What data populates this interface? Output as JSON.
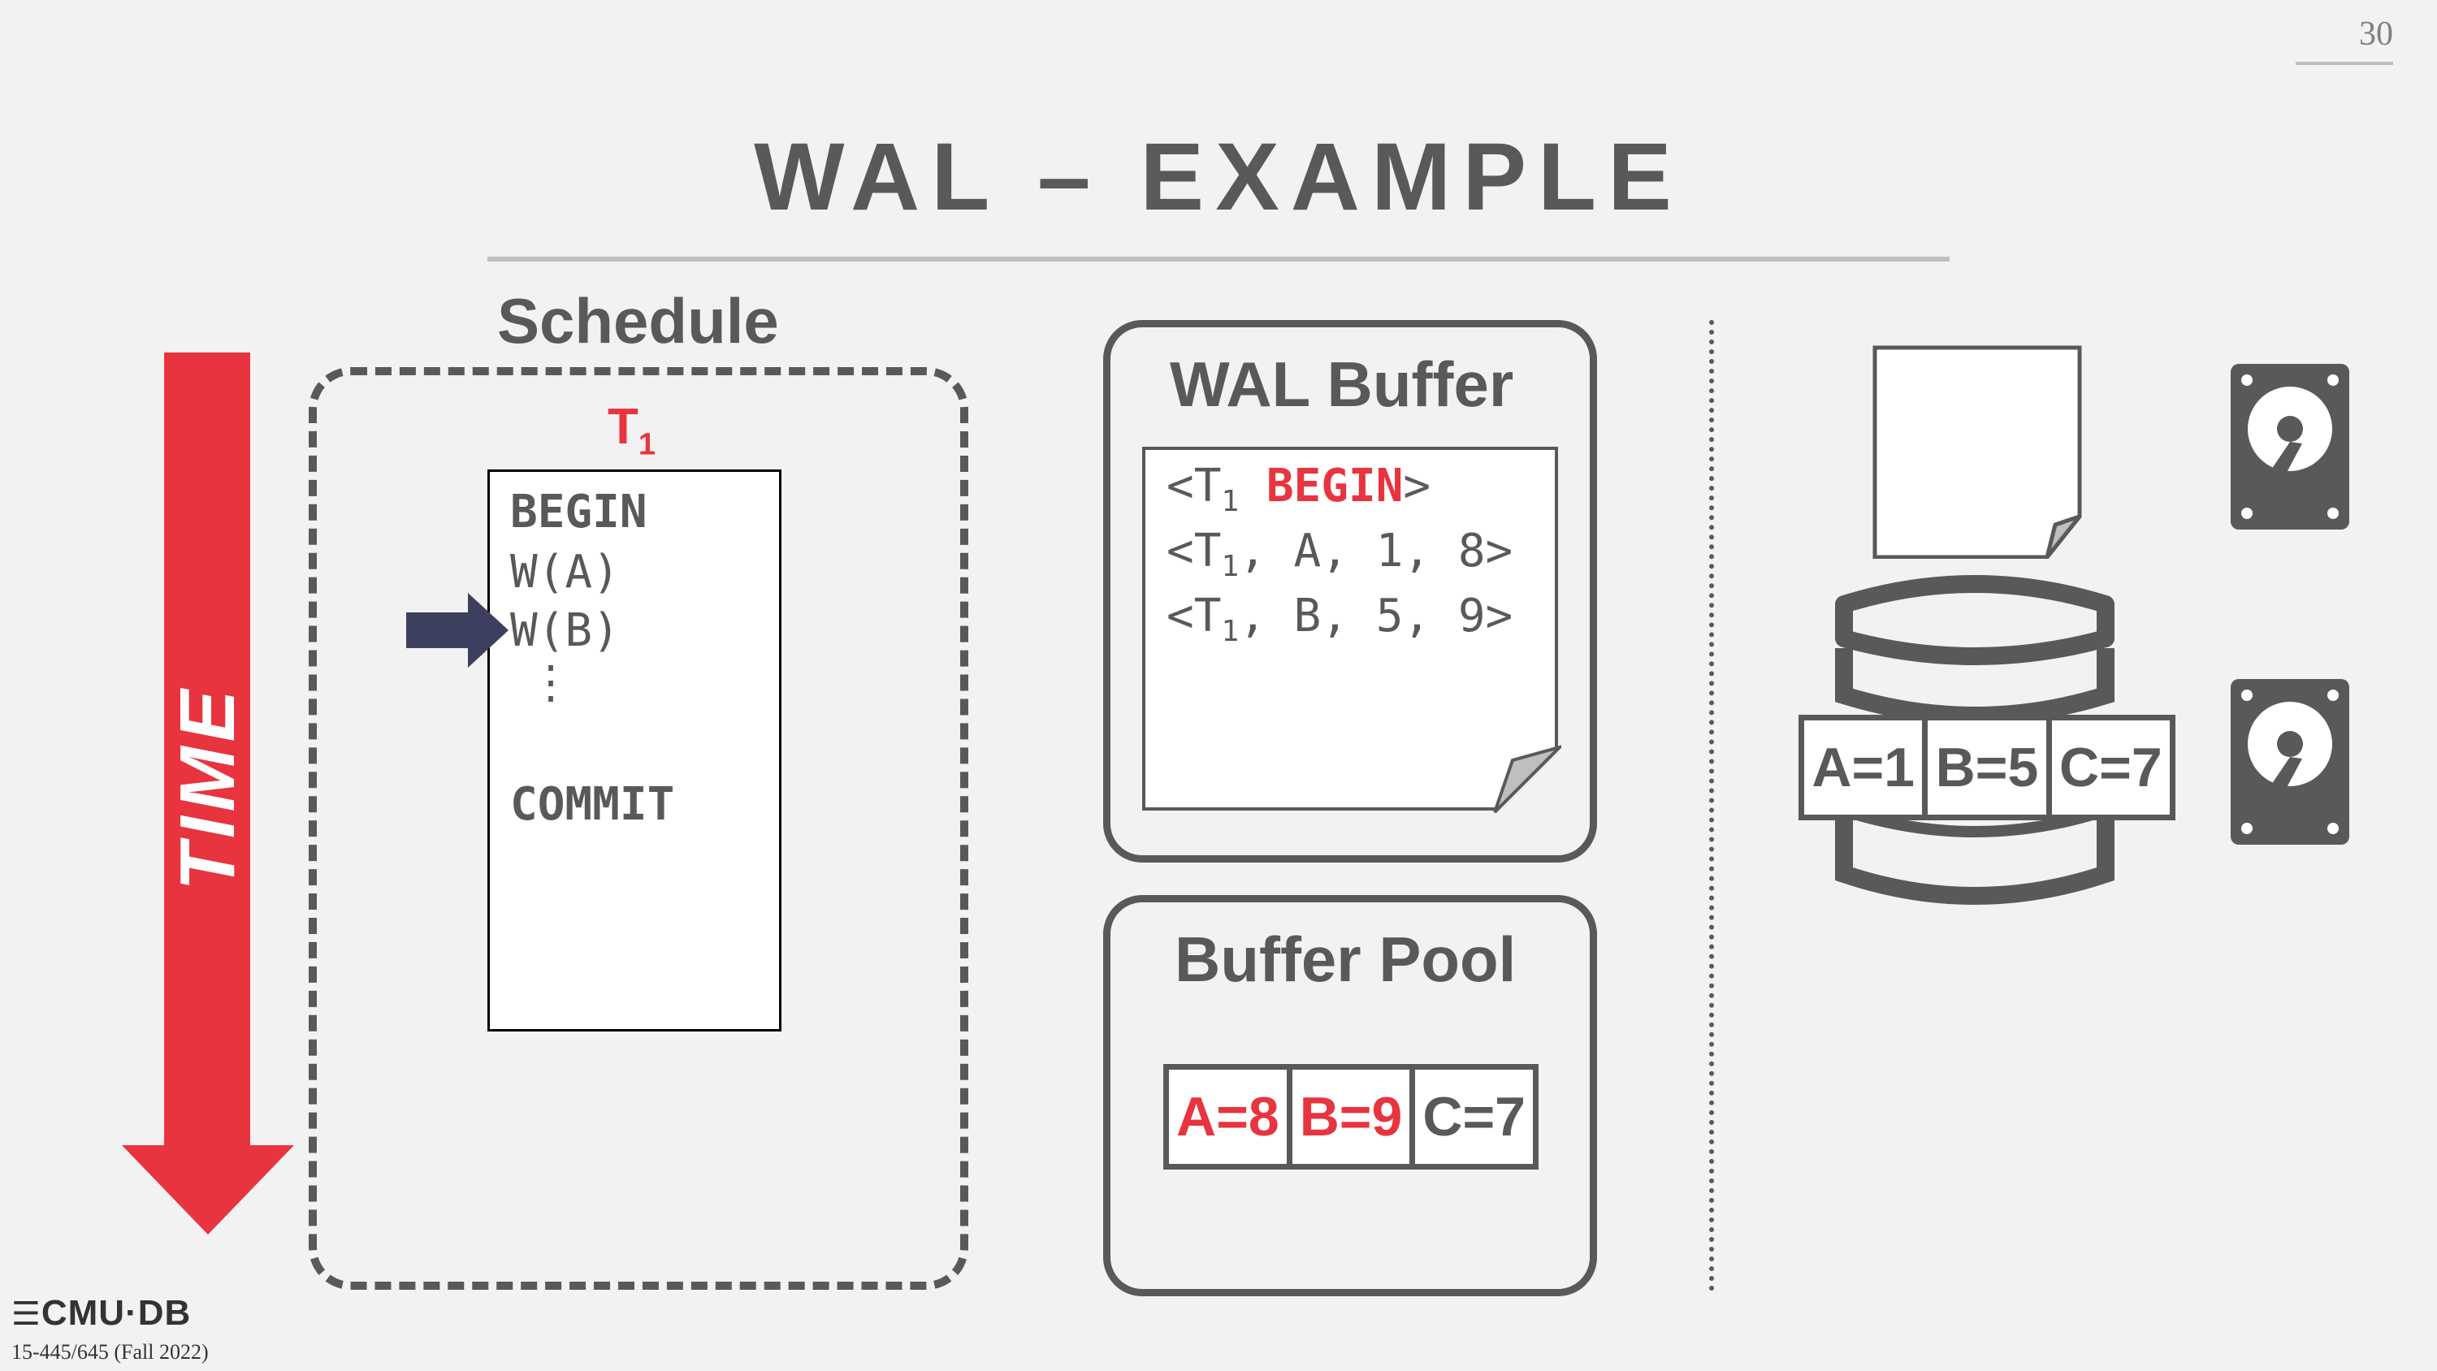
{
  "slide": {
    "number": "30",
    "title": "WAL – EXAMPLE"
  },
  "schedule": {
    "label": "Schedule",
    "time_label": "TIME",
    "txn_name": "T",
    "txn_sub": "1",
    "ops": [
      "BEGIN",
      "W(A)",
      "W(B)",
      "⋮",
      "COMMIT"
    ]
  },
  "wal_buffer": {
    "label": "WAL Buffer",
    "records": [
      {
        "prefix": "<T",
        "sub": "1",
        "rest_plain": " ",
        "rest_red": "BEGIN",
        "suffix": ">"
      },
      {
        "prefix": "<T",
        "sub": "1",
        "rest_plain": ", A, 1, 8>",
        "rest_red": "",
        "suffix": ""
      },
      {
        "prefix": "<T",
        "sub": "1",
        "rest_plain": ", B, 5, 9>",
        "rest_red": "",
        "suffix": ""
      }
    ]
  },
  "buffer_pool": {
    "label": "Buffer Pool",
    "cells": [
      {
        "text": "A=8",
        "dirty": true
      },
      {
        "text": "B=9",
        "dirty": true
      },
      {
        "text": "C=7",
        "dirty": false
      }
    ]
  },
  "disk": {
    "cells": [
      {
        "text": "A=1"
      },
      {
        "text": "B=5"
      },
      {
        "text": "C=7"
      }
    ]
  },
  "footer": {
    "logo": "CMU·DB",
    "course": "15-445/645 (Fall 2022)"
  },
  "colors": {
    "accent_red": "#e8343f",
    "dark_gray": "#595959",
    "arrow_navy": "#3d3f5f"
  }
}
